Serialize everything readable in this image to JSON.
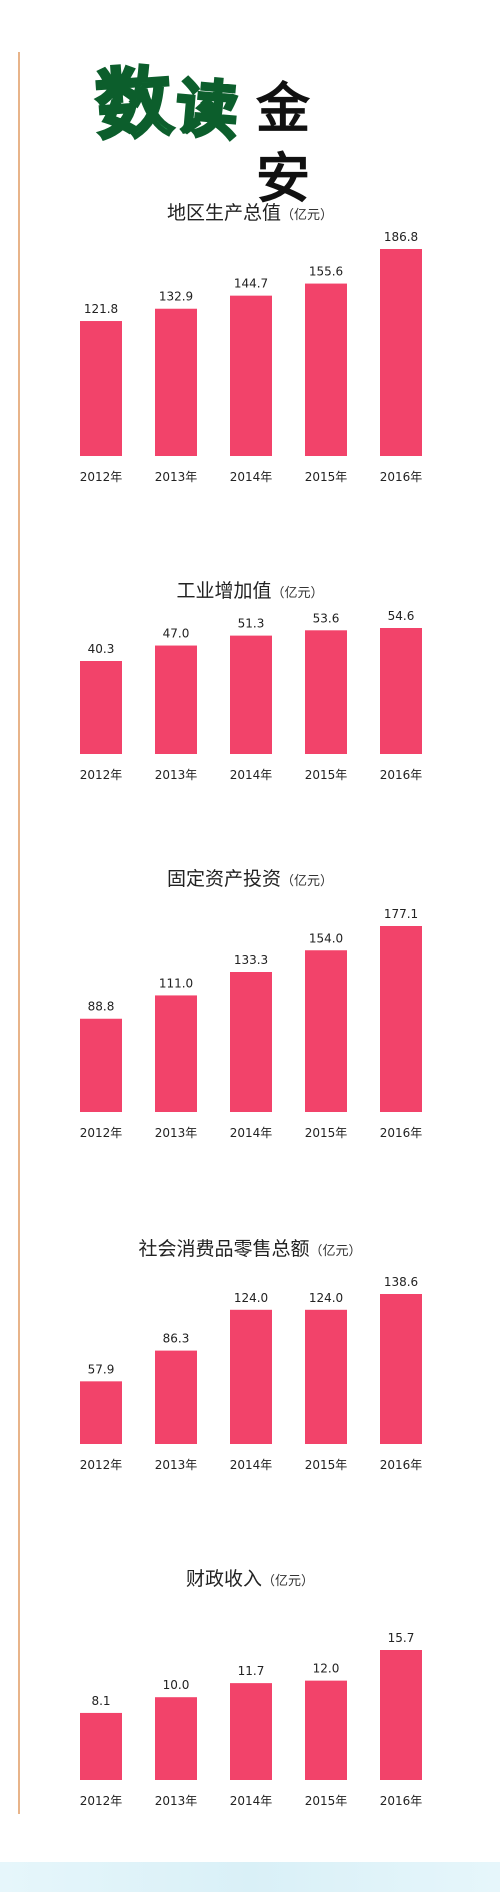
{
  "masthead": {
    "part1": "数",
    "part2": "读",
    "part3": "金安"
  },
  "chart_data": [
    {
      "type": "bar",
      "title": "地区生产总值",
      "unit": "（亿元）",
      "categories": [
        "2012年",
        "2013年",
        "2014年",
        "2015年",
        "2016年"
      ],
      "values": [
        121.8,
        132.9,
        144.7,
        155.6,
        186.8
      ],
      "value_labels": [
        "121.8",
        "132.9",
        "144.7",
        "155.6",
        "186.8"
      ],
      "color": "#f2436a"
    },
    {
      "type": "bar",
      "title": "工业增加值",
      "unit": "（亿元）",
      "categories": [
        "2012年",
        "2013年",
        "2014年",
        "2015年",
        "2016年"
      ],
      "values": [
        40.3,
        47.0,
        51.3,
        53.6,
        54.6
      ],
      "value_labels": [
        "40.3",
        "47.0",
        "51.3",
        "53.6",
        "54.6"
      ],
      "color": "#f2436a"
    },
    {
      "type": "bar",
      "title": "固定资产投资",
      "unit": "（亿元）",
      "categories": [
        "2012年",
        "2013年",
        "2014年",
        "2015年",
        "2016年"
      ],
      "values": [
        88.8,
        111.0,
        133.3,
        154.0,
        177.1
      ],
      "value_labels": [
        "88.8",
        "111.0",
        "133.3",
        "154.0",
        "177.1"
      ],
      "color": "#f2436a"
    },
    {
      "type": "bar",
      "title": "社会消费品零售总额",
      "unit": "（亿元）",
      "categories": [
        "2012年",
        "2013年",
        "2014年",
        "2015年",
        "2016年"
      ],
      "values": [
        57.9,
        86.3,
        124.0,
        124.0,
        138.6
      ],
      "value_labels": [
        "57.9",
        "86.3",
        "124.0",
        "124.0",
        "138.6"
      ],
      "color": "#f2436a"
    },
    {
      "type": "bar",
      "title": "财政收入",
      "unit": "（亿元）",
      "categories": [
        "2012年",
        "2013年",
        "2014年",
        "2015年",
        "2016年"
      ],
      "values": [
        8.1,
        10.0,
        11.7,
        12.0,
        15.7
      ],
      "value_labels": [
        "8.1",
        "10.0",
        "11.7",
        "12.0",
        "15.7"
      ],
      "color": "#f2436a"
    }
  ]
}
